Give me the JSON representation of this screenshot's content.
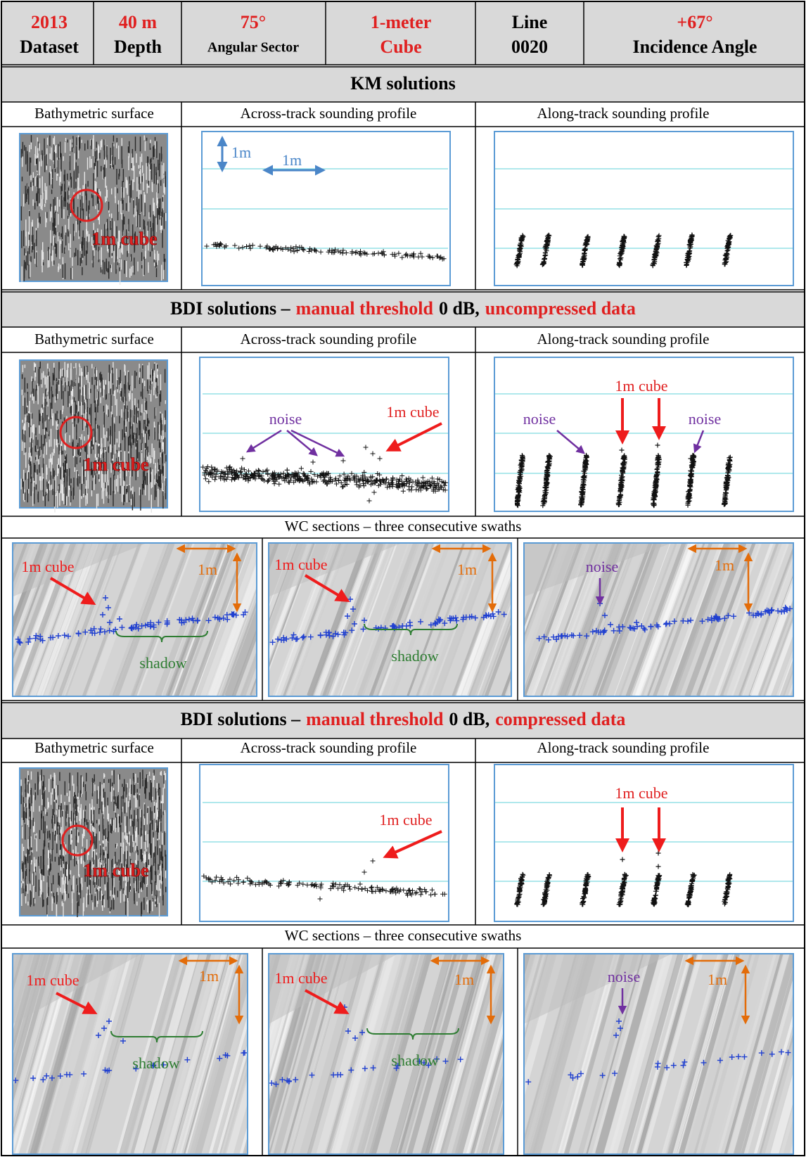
{
  "header": {
    "cells": [
      {
        "line1": "2013",
        "line2": "Dataset"
      },
      {
        "line1": "40 m",
        "line2": "Depth"
      },
      {
        "line1": "75°",
        "line2": "Angular Sector"
      },
      {
        "line1": "1-meter",
        "line2": "Cube"
      },
      {
        "line1": "Line",
        "line2": "0020"
      },
      {
        "line1": "+67°",
        "line2": "Incidence Angle"
      }
    ]
  },
  "sections": [
    {
      "title": "KM solutions",
      "columns": [
        "Bathymetric surface",
        "Across-track sounding profile",
        "Along-track sounding profile"
      ],
      "bathymetric_label": "1m cube",
      "across_track_labels": [
        "1m",
        "1m"
      ]
    },
    {
      "title_parts": [
        "BDI solutions –",
        "manual threshold",
        "0 dB,",
        "uncompressed data"
      ],
      "columns": [
        "Bathymetric surface",
        "Across-track sounding profile",
        "Along-track sounding profile"
      ],
      "bathymetric_label": "1m cube",
      "across_track_labels": [
        "noise",
        "1m cube"
      ],
      "along_track_labels": [
        "noise",
        "1m cube",
        "noise"
      ],
      "wc_title": "WC sections – three consecutive swaths",
      "wc_panels": [
        {
          "labels": [
            "1m cube",
            "1m",
            "shadow"
          ]
        },
        {
          "labels": [
            "1m cube",
            "1m",
            "shadow"
          ]
        },
        {
          "labels": [
            "noise",
            "1m"
          ]
        }
      ]
    },
    {
      "title_parts": [
        "BDI solutions –",
        "manual threshold",
        "0 dB,",
        "compressed data"
      ],
      "columns": [
        "Bathymetric surface",
        "Across-track sounding profile",
        "Along-track sounding profile"
      ],
      "bathymetric_label": "1m cube",
      "across_track_labels": [
        "1m cube"
      ],
      "along_track_labels": [
        "1m cube"
      ],
      "wc_title": "WC sections – three consecutive swaths",
      "wc_panels": [
        {
          "labels": [
            "1m cube",
            "1m",
            "shadow"
          ]
        },
        {
          "labels": [
            "1m cube",
            "1m",
            "shadow"
          ]
        },
        {
          "labels": [
            "noise",
            "1m"
          ]
        }
      ]
    }
  ]
}
